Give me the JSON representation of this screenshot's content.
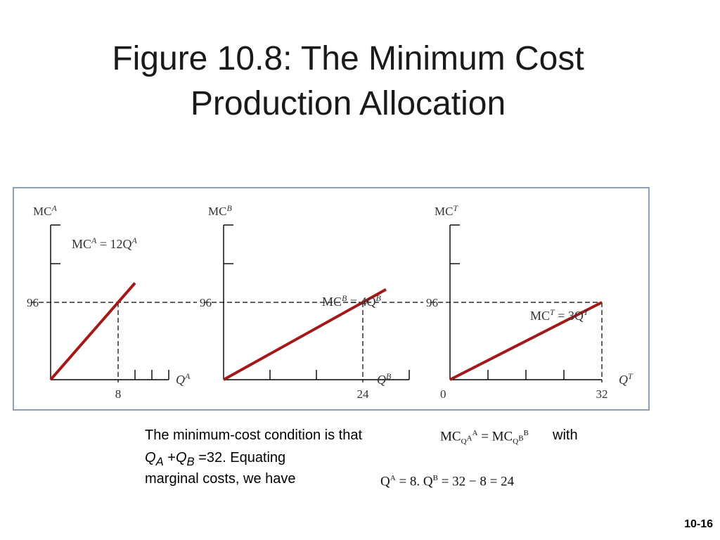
{
  "slide": {
    "title_line1": "Figure 10.8: The Minimum Cost",
    "title_line2": "Production Allocation",
    "slide_number": "10-16"
  },
  "caption": {
    "line1": "The minimum-cost condition is that",
    "with": "with",
    "equating": "=32. Equating",
    "line3": "marginal costs, we have"
  },
  "colors": {
    "line": "#a31919",
    "axis": "#000000",
    "frame": "#8aa0bb"
  },
  "chart_data": [
    {
      "type": "line",
      "name": "A",
      "ylabel": "MCᴬ",
      "ylabel_main": "MC",
      "ylabel_sup": "A",
      "xlabel_main": "Q",
      "xlabel_sup": "A",
      "equation": "MCᴬ = 12Qᴬ",
      "equation_parts": {
        "mc": "MC",
        "sup1": "A",
        "rhs": " = 12Q",
        "sup2": "A"
      },
      "x": [
        0,
        10
      ],
      "y": [
        0,
        120
      ],
      "xlim": [
        0,
        14
      ],
      "ylim": [
        0,
        192
      ],
      "ref_y": 96,
      "ref_x": 8,
      "ref_y_label": "96",
      "ref_x_label": "8",
      "x_ticks": [
        8,
        10,
        12,
        14
      ],
      "y_ticks": [
        96,
        144,
        192
      ]
    },
    {
      "type": "line",
      "name": "B",
      "ylabel": "MCᴮ",
      "ylabel_main": "MC",
      "ylabel_sup": "B",
      "xlabel_main": "Q",
      "xlabel_sup": "B",
      "equation": "MCᴮ = 4Qᴮ",
      "equation_parts": {
        "mc": "MC",
        "sup1": "B",
        "rhs": " = 4Q",
        "sup2": "B"
      },
      "x": [
        0,
        28
      ],
      "y": [
        0,
        112
      ],
      "xlim": [
        0,
        32
      ],
      "ylim": [
        0,
        192
      ],
      "ref_y": 96,
      "ref_x": 24,
      "ref_y_label": "96",
      "ref_x_label": "24",
      "x_ticks": [
        8,
        16,
        24,
        32
      ],
      "y_ticks": [
        96,
        144,
        192
      ]
    },
    {
      "type": "line",
      "name": "T",
      "ylabel": "MCᵀ",
      "ylabel_main": "MC",
      "ylabel_sup": "T",
      "xlabel_main": "Q",
      "xlabel_sup": "T",
      "equation": "MCᵀ = 3Qᵀ",
      "equation_parts": {
        "mc": "MC",
        "sup1": "T",
        "rhs": " = 3Q",
        "sup2": "T"
      },
      "x": [
        0,
        32
      ],
      "y": [
        0,
        96
      ],
      "xlim": [
        0,
        32
      ],
      "ylim": [
        0,
        192
      ],
      "ref_y": 96,
      "ref_x": 32,
      "ref_y_label": "96",
      "ref_x_label": "32",
      "origin_label": "0",
      "x_ticks": [
        8,
        16,
        24,
        32
      ],
      "y_ticks": [
        96,
        144,
        192
      ]
    }
  ]
}
